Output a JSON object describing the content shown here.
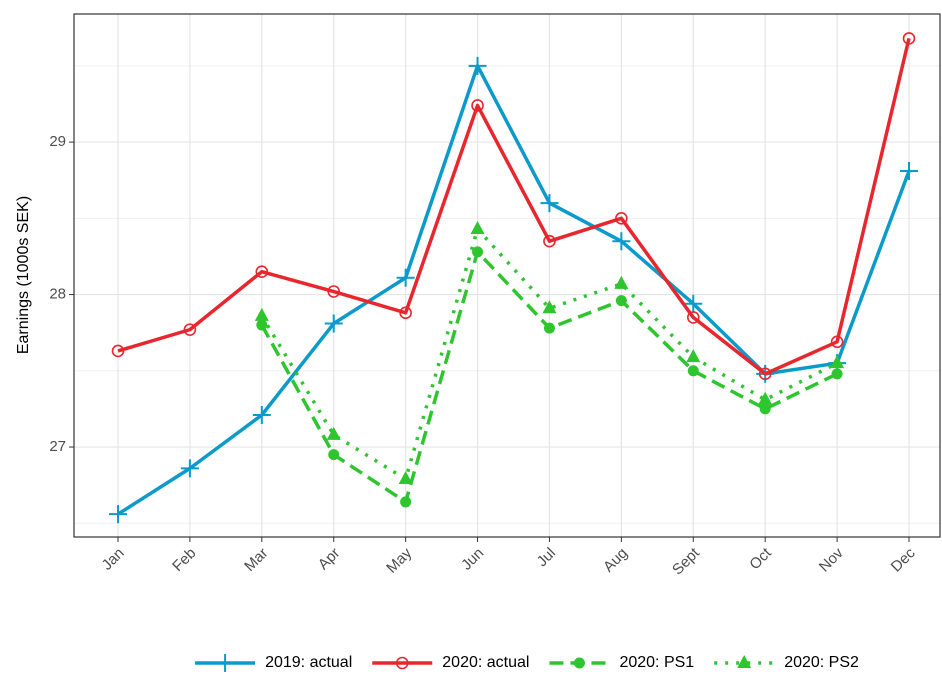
{
  "chart_data": {
    "type": "line",
    "y_label": "Earnings (1000s SEK)",
    "categories": [
      "Jan",
      "Feb",
      "Mar",
      "Apr",
      "May",
      "Jun",
      "Jul",
      "Aug",
      "Sept",
      "Oct",
      "Nov",
      "Dec"
    ],
    "series": [
      {
        "name": "2019: actual",
        "color": "#0b9ac9",
        "marker": "plus",
        "dash": "solid",
        "values": [
          26.56,
          26.86,
          27.21,
          27.81,
          28.11,
          29.5,
          28.6,
          28.35,
          27.94,
          27.48,
          27.55,
          28.81
        ]
      },
      {
        "name": "2020: actual",
        "color": "#e8262e",
        "marker": "open-circle",
        "dash": "solid",
        "values": [
          27.63,
          27.77,
          28.15,
          28.02,
          27.88,
          29.24,
          28.35,
          28.5,
          27.85,
          27.48,
          27.69,
          29.68
        ]
      },
      {
        "name": "2020: PS1",
        "color": "#2ec52e",
        "marker": "circle",
        "dash": "dashed",
        "values": [
          null,
          null,
          27.8,
          26.95,
          26.64,
          28.28,
          27.78,
          27.96,
          27.5,
          27.25,
          27.48,
          null
        ]
      },
      {
        "name": "2020: PS2",
        "color": "#2ec52e",
        "marker": "triangle",
        "dash": "dotted",
        "values": [
          null,
          null,
          27.86,
          27.08,
          26.79,
          28.43,
          27.91,
          28.07,
          27.59,
          27.31,
          27.55,
          null
        ]
      }
    ],
    "ylim": [
      26.41,
      29.84
    ],
    "yticks": [
      27,
      28,
      29
    ],
    "minor_yticks": [
      26.5,
      27.5,
      28.5,
      29.5
    ],
    "grid": true,
    "legend": "bottom"
  }
}
